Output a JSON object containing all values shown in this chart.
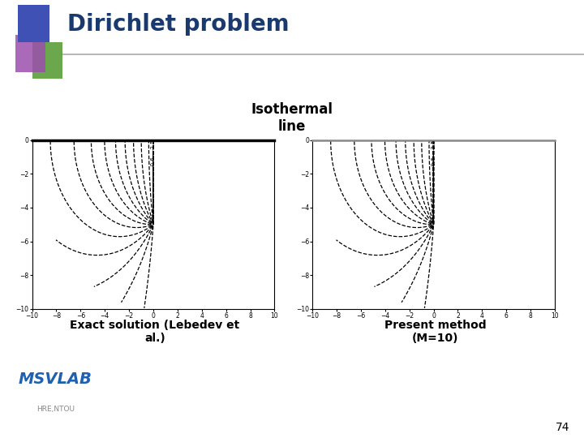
{
  "title": "Dirichlet problem",
  "subtitle": "Isothermal\nline",
  "label_left": "Exact solution (Lebedev et\nal.)",
  "label_right": "Present method\n(M=10)",
  "page_number": "74",
  "bg_color": "#ffffff",
  "title_color": "#1a3a6e",
  "title_fontsize": 20,
  "subtitle_fontsize": 12,
  "label_fontsize": 10,
  "xlim": [
    -10,
    10
  ],
  "ylim": [
    -10,
    0
  ],
  "contour_color": "#000000",
  "logo_text": "MSVLAB",
  "logo_sub": "HRE,NTOU",
  "sq_blue": "#3f51b5",
  "sq_purple": "#9c4fad",
  "sq_green": "#5a9e3a"
}
